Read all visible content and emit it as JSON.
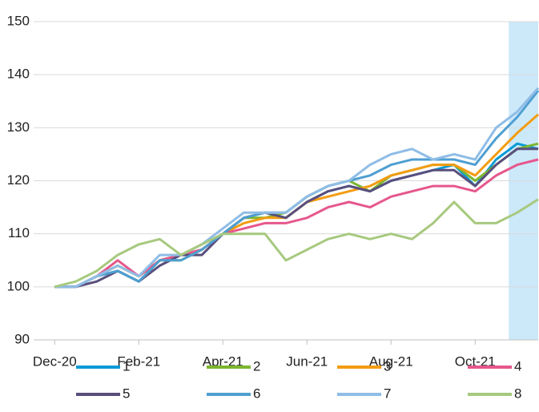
{
  "chart_data": {
    "type": "line",
    "x": [
      0,
      0.5,
      1,
      1.5,
      2,
      2.5,
      3,
      3.5,
      4,
      4.5,
      5,
      5.5,
      6,
      6.5,
      7,
      7.5,
      8,
      8.5,
      9,
      9.5,
      10,
      10.5,
      11,
      11.5
    ],
    "xlim": [
      -0.5,
      11.5
    ],
    "xticks": [
      {
        "value": 0,
        "label": "Dec-20"
      },
      {
        "value": 2,
        "label": "Feb-21"
      },
      {
        "value": 4,
        "label": "Apr-21"
      },
      {
        "value": 6,
        "label": "Jun-21"
      },
      {
        "value": 8,
        "label": "Aug-21"
      },
      {
        "value": 10,
        "label": "Oct-21"
      }
    ],
    "ylim": [
      90,
      150
    ],
    "yticks": [
      90,
      100,
      110,
      120,
      130,
      140,
      150
    ],
    "grid": true,
    "highlight_xrange": [
      10.8,
      11.5
    ],
    "highlight_color": "#cce9fa",
    "legend": "bottom",
    "series": [
      {
        "name": "1",
        "color": "#0a9bd6",
        "values": [
          100,
          100,
          102,
          103,
          101,
          105,
          106,
          107,
          110,
          113,
          114,
          113,
          116,
          118,
          119,
          118,
          120,
          121,
          122,
          123,
          119,
          124,
          127,
          126
        ]
      },
      {
        "name": "2",
        "color": "#7cb631",
        "values": [
          100,
          100,
          102,
          104,
          102,
          105,
          105,
          107,
          110,
          113,
          113,
          114,
          117,
          119,
          120,
          118,
          121,
          122,
          123,
          123,
          120,
          123,
          126,
          127
        ]
      },
      {
        "name": "3",
        "color": "#f39c12",
        "values": [
          100,
          100,
          102,
          104,
          102,
          105,
          106,
          107,
          110,
          112,
          113,
          113,
          116,
          117,
          118,
          119,
          121,
          122,
          123,
          123,
          121,
          125,
          129,
          132.5
        ]
      },
      {
        "name": "4",
        "color": "#e6578c",
        "values": [
          100,
          100,
          102,
          105,
          102,
          105,
          106,
          107,
          110,
          111,
          112,
          112,
          113,
          115,
          116,
          115,
          117,
          118,
          119,
          119,
          118,
          121,
          123,
          124
        ]
      },
      {
        "name": "5",
        "color": "#5a4e7c",
        "values": [
          100,
          100,
          101,
          103,
          101,
          104,
          106,
          106,
          110,
          113,
          114,
          113,
          116,
          118,
          119,
          118,
          120,
          121,
          122,
          122,
          119,
          123,
          126,
          126
        ]
      },
      {
        "name": "6",
        "color": "#4f9fd1",
        "values": [
          100,
          100,
          102,
          103,
          101,
          105,
          105,
          107,
          110,
          113,
          114,
          114,
          117,
          119,
          120,
          121,
          123,
          124,
          124,
          124,
          123,
          128,
          132,
          137
        ]
      },
      {
        "name": "7",
        "color": "#8fbde6",
        "values": [
          100,
          100,
          102,
          104,
          102,
          106,
          106,
          108,
          111,
          114,
          114,
          114,
          117,
          119,
          120,
          123,
          125,
          126,
          124,
          125,
          124,
          130,
          133,
          137.5
        ]
      },
      {
        "name": "8",
        "color": "#a7c97f",
        "values": [
          100,
          101,
          103,
          106,
          108,
          109,
          106,
          108,
          110,
          110,
          110,
          105,
          107,
          109,
          110,
          109,
          110,
          109,
          112,
          116,
          112,
          112,
          114,
          116.5
        ]
      }
    ]
  }
}
